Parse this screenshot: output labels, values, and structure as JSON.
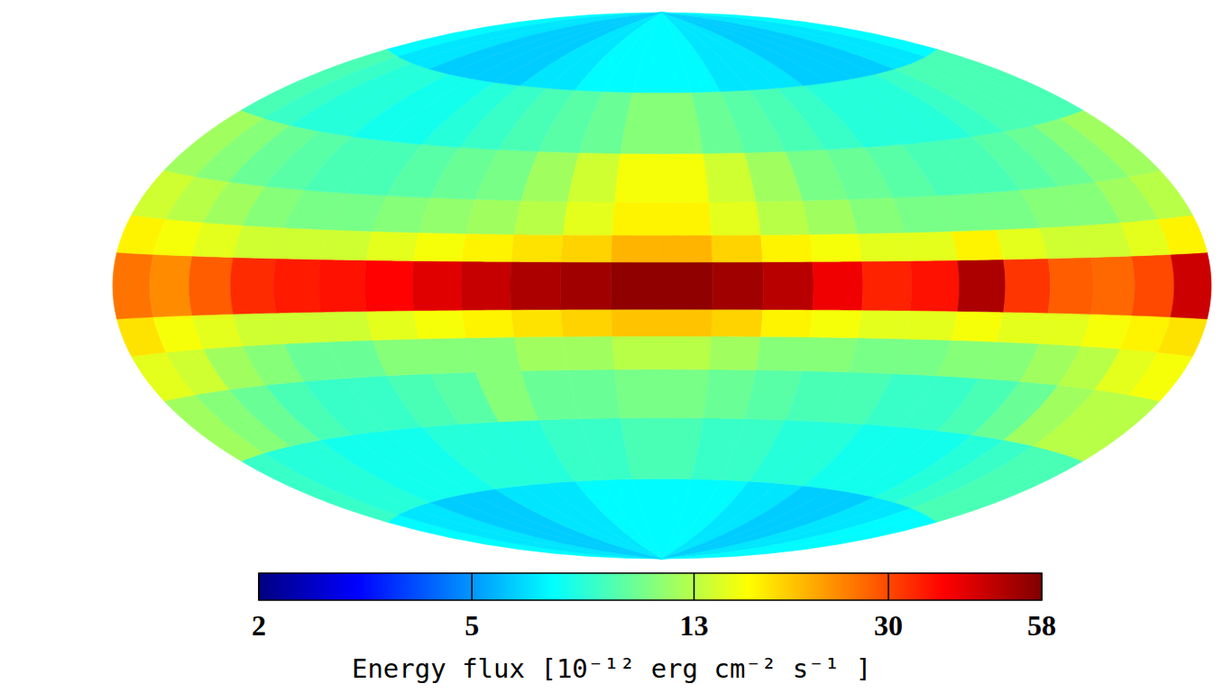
{
  "chart_data": {
    "type": "heatmap",
    "log": true,
    "lon_edges": [
      180,
      165,
      150,
      135,
      120,
      105,
      90,
      75,
      60,
      45,
      30,
      15,
      0,
      -15,
      -30,
      -45,
      -60,
      -75,
      -90,
      -105,
      -120,
      -135,
      -150,
      -165,
      -180
    ],
    "lat_edges": [
      -90,
      -60,
      -40,
      -25,
      -15,
      -7,
      7,
      15,
      25,
      40,
      60,
      90
    ],
    "cells": [
      [
        7,
        6.5,
        6.5,
        6,
        6,
        6,
        6.5,
        6.5,
        6.5,
        7,
        7,
        7,
        7,
        7,
        7,
        6.5,
        6.5,
        6,
        6,
        6,
        6.5,
        6.5,
        7,
        7
      ],
      [
        8.5,
        8,
        8,
        7.5,
        7.5,
        7.5,
        8,
        8,
        8,
        8.5,
        8.5,
        9,
        9,
        8.5,
        8.5,
        8,
        8,
        7.5,
        7.5,
        7.5,
        8,
        8.5,
        9,
        9
      ],
      [
        12,
        11,
        10,
        9,
        8.5,
        8.5,
        9,
        9.5,
        11,
        10,
        10,
        10.5,
        10.5,
        10,
        9.5,
        9,
        9,
        8.5,
        8.5,
        9,
        10,
        12,
        13,
        13
      ],
      [
        15,
        14,
        12,
        11,
        10,
        10,
        11,
        11,
        11,
        12,
        12,
        13,
        13,
        12,
        11,
        11,
        10.5,
        10.5,
        11,
        11,
        12,
        13,
        15,
        16
      ],
      [
        18,
        16,
        15,
        14,
        14,
        14,
        15,
        16,
        17,
        18,
        19,
        20,
        20,
        19,
        17,
        16,
        15,
        15,
        16,
        15,
        15,
        16,
        17,
        18
      ],
      [
        26,
        24,
        28,
        33,
        35,
        36,
        38,
        42,
        46,
        50,
        52,
        55,
        55,
        52,
        48,
        40,
        34,
        36,
        50,
        32,
        28,
        27,
        30,
        45
      ],
      [
        17,
        16,
        15,
        14,
        14,
        14,
        15,
        16,
        17,
        18,
        19,
        21,
        21,
        19,
        17,
        16,
        15,
        15,
        17,
        15,
        14,
        14,
        15,
        17
      ],
      [
        14,
        13,
        12,
        11,
        10.5,
        10.5,
        11,
        11.5,
        12,
        13,
        15,
        17,
        17,
        15,
        13,
        12,
        11,
        10.5,
        10.5,
        10.5,
        11,
        11,
        12,
        13
      ],
      [
        12,
        11,
        10,
        9.5,
        9,
        9,
        9.5,
        10,
        10.5,
        12,
        14,
        16,
        16,
        14,
        12,
        10.5,
        10,
        9.5,
        9,
        9,
        9.5,
        10,
        11,
        12
      ],
      [
        9,
        8.5,
        8,
        8,
        7.5,
        7.5,
        8,
        8.5,
        9,
        9.5,
        10,
        11,
        11,
        10,
        9.5,
        9,
        8.5,
        8,
        8,
        8,
        8.5,
        9,
        9,
        9
      ],
      [
        7,
        6.5,
        6.5,
        6,
        6,
        6,
        6,
        6.5,
        6.5,
        7,
        7,
        7,
        7,
        7,
        6.5,
        6.5,
        6.5,
        6,
        6,
        6,
        6,
        6.5,
        6.5,
        7
      ]
    ],
    "colorbar_label": "Energy flux [10⁻¹² erg cm⁻² s⁻¹ ]",
    "colorbar_range": [
      2,
      58
    ],
    "colorbar_ticks": [
      2,
      5,
      13,
      30,
      58
    ]
  }
}
